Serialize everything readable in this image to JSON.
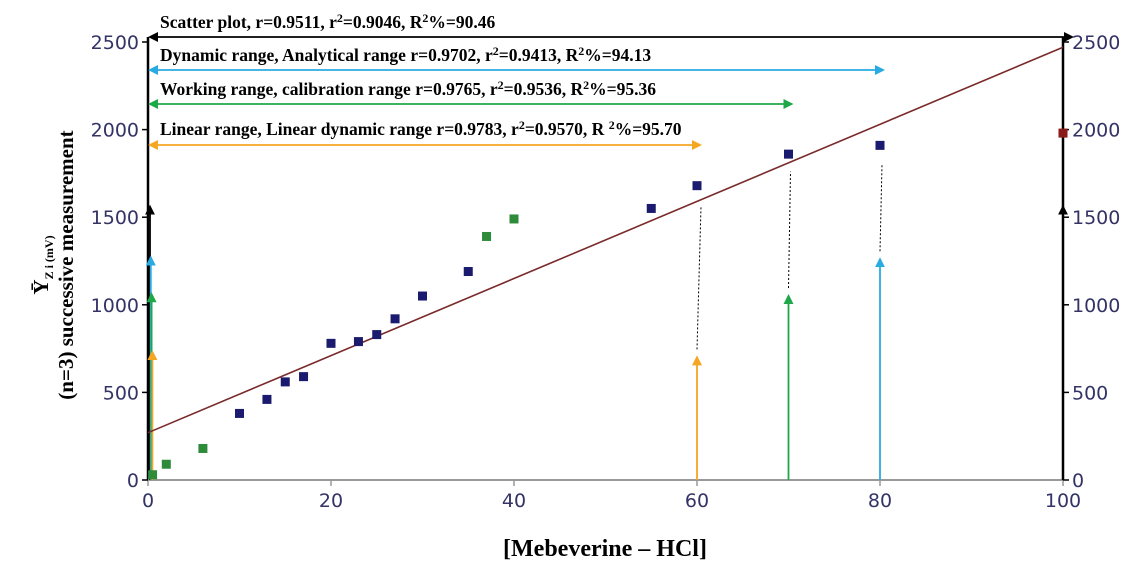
{
  "chart_data": {
    "type": "scatter",
    "title": "",
    "xlabel": "[Mebeverine – HCl]",
    "ylabel_main": "(n=3) successive measurement",
    "ylabel_symbol": "Ȳ",
    "ylabel_sub": "Z i (mV)",
    "xlim": [
      0,
      100
    ],
    "ylim": [
      0,
      2500
    ],
    "x_ticks": [
      "0",
      "20",
      "40",
      "60",
      "80",
      "100"
    ],
    "y_ticks": [
      "0",
      "500",
      "1000",
      "1500",
      "2000",
      "2500"
    ],
    "y2_ticks": [
      "0",
      "500",
      "1000",
      "1500",
      "2000",
      "2500"
    ],
    "grid": false,
    "series": [
      {
        "color": "#1a1a6e",
        "x": [
          10,
          13,
          15,
          17,
          20,
          23,
          25,
          27,
          30,
          35,
          55,
          60,
          70,
          80
        ],
        "y": [
          380,
          460,
          560,
          590,
          780,
          790,
          830,
          920,
          1050,
          1190,
          1550,
          1680,
          1860,
          1910
        ]
      },
      {
        "color": "#2e8b3a",
        "x": [
          0.5,
          2,
          6,
          37,
          40
        ],
        "y": [
          30,
          90,
          180,
          1390,
          1490
        ]
      },
      {
        "color": "#8b1a1a",
        "x": [
          100
        ],
        "y": [
          1980
        ]
      }
    ],
    "fit_line": {
      "color": "#7a2a2a",
      "x": [
        0,
        100
      ],
      "y": [
        270,
        2470
      ]
    },
    "range_annotations": [
      {
        "label": "Scatter plot, r=0.9511, r",
        "label_sup1": "2",
        "label_mid": "=0.9046, R",
        "label_sup2": "2",
        "label_end": "%=90.46",
        "color": "#000000",
        "x_start": 0,
        "x_end": 100
      },
      {
        "label": "Dynamic range, Analytical range r=0.9702, r",
        "label_sup1": "2",
        "label_mid": "=0.9413, R",
        "label_sup2": "2",
        "label_end": "%=94.13",
        "color": "#29abe2",
        "x_start": 0,
        "x_end": 80
      },
      {
        "label": "Working range, calibration range r=0.9765, r",
        "label_sup1": "2",
        "label_mid": "=0.9536, R",
        "label_sup2": "2",
        "label_end": "%=95.36",
        "color": "#1fa84a",
        "x_start": 0,
        "x_end": 70
      },
      {
        "label": "Linear range, Linear dynamic range r=0.9783, r",
        "label_sup1": "2",
        "label_mid": "=0.9570, R ",
        "label_sup2": "2",
        "label_end": "%=95.70",
        "color": "#f5a623",
        "x_start": 0,
        "x_end": 60
      }
    ]
  }
}
